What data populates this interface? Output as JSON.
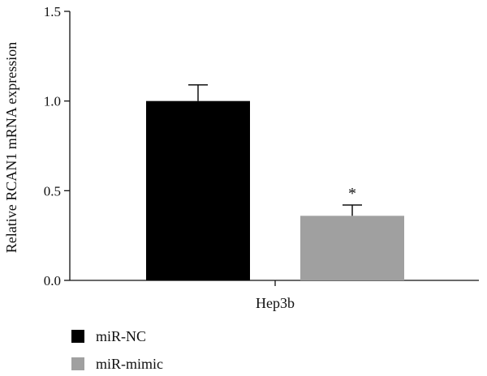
{
  "chart_data": {
    "type": "bar",
    "categories": [
      "Hep3b"
    ],
    "series": [
      {
        "name": "miR-NC",
        "values": [
          1.0
        ],
        "error": [
          0.09
        ],
        "color": "#000000"
      },
      {
        "name": "miR-mimic",
        "values": [
          0.36
        ],
        "error": [
          0.06
        ],
        "color": "#a0a0a0"
      }
    ],
    "ylabel": "Relative RCAN1 mRNA expression",
    "xlabel": "",
    "ylim": [
      0,
      1.5
    ],
    "yticks": [
      0.0,
      0.5,
      1.0,
      1.5
    ],
    "ytick_labels": [
      "0.0",
      "0.5",
      "1.0",
      "1.5"
    ],
    "annotations": [
      {
        "series": "miR-mimic",
        "category": "Hep3b",
        "text": "*"
      }
    ],
    "grid": false,
    "legend_position": "bottom-left"
  }
}
